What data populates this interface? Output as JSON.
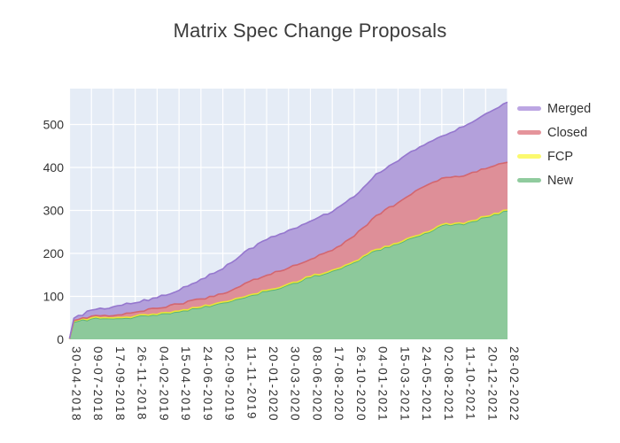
{
  "figure": {
    "title": "Matrix Spec Change Proposals"
  },
  "chart_data": {
    "type": "area",
    "stacked": true,
    "title": "Matrix Spec Change Proposals",
    "xlabel": "",
    "ylabel": "",
    "grid": true,
    "legend_position": "right",
    "plot_bg": "#e5ecf6",
    "grid_color": "#ffffff",
    "ylim": [
      0,
      583
    ],
    "y_ticks": [
      0,
      100,
      200,
      300,
      400,
      500
    ],
    "x": [
      "30-04-2018",
      "14-05-2018",
      "09-07-2018",
      "17-09-2018",
      "26-11-2018",
      "04-02-2019",
      "15-04-2019",
      "24-06-2019",
      "02-09-2019",
      "11-11-2019",
      "20-01-2020",
      "30-03-2020",
      "08-06-2020",
      "17-08-2020",
      "26-10-2020",
      "04-01-2021",
      "15-03-2021",
      "24-05-2021",
      "02-08-2021",
      "11-10-2021",
      "20-12-2021",
      "28-02-2022"
    ],
    "x_ticklabels": [
      "30-04-2018",
      "09-07-2018",
      "17-09-2018",
      "26-11-2018",
      "04-02-2019",
      "15-04-2019",
      "24-06-2019",
      "02-09-2019",
      "11-11-2019",
      "20-01-2020",
      "30-03-2020",
      "08-06-2020",
      "17-08-2020",
      "26-10-2020",
      "04-01-2021",
      "15-03-2021",
      "24-05-2021",
      "02-08-2021",
      "11-10-2021",
      "20-12-2021",
      "28-02-2022"
    ],
    "series": [
      {
        "name": "New",
        "fill": "#8dc99b",
        "line": "#5ab478",
        "swatch": "#90cb9e",
        "values": [
          1,
          40,
          48,
          48,
          52,
          56,
          64,
          73,
          85,
          97,
          112,
          127,
          144,
          159,
          179,
          207,
          222,
          241,
          265,
          267,
          284,
          299
        ]
      },
      {
        "name": "FCP",
        "fill": "#f5f263",
        "line": "#e9e438",
        "swatch": "#fbf96e",
        "values": [
          0,
          2,
          2,
          2,
          2,
          2,
          2,
          2,
          2,
          2,
          2,
          2,
          2,
          2,
          2,
          2,
          2,
          2,
          2,
          2,
          2,
          2
        ]
      },
      {
        "name": "Closed",
        "fill": "#de8f98",
        "line": "#d3666f",
        "swatch": "#e5949b",
        "values": [
          0,
          2,
          4,
          5,
          9,
          14,
          16,
          19,
          19,
          31,
          35,
          37,
          40,
          46,
          59,
          79,
          94,
          108,
          108,
          111,
          111,
          111
        ]
      },
      {
        "name": "Merged",
        "fill": "#b3a0db",
        "line": "#9577ce",
        "swatch": "#bca6e3",
        "values": [
          1,
          5,
          14,
          21,
          22,
          25,
          32,
          46,
          58,
          74,
          83,
          88,
          89,
          90,
          92,
          97,
          97,
          97,
          98,
          115,
          128,
          140
        ]
      }
    ]
  }
}
